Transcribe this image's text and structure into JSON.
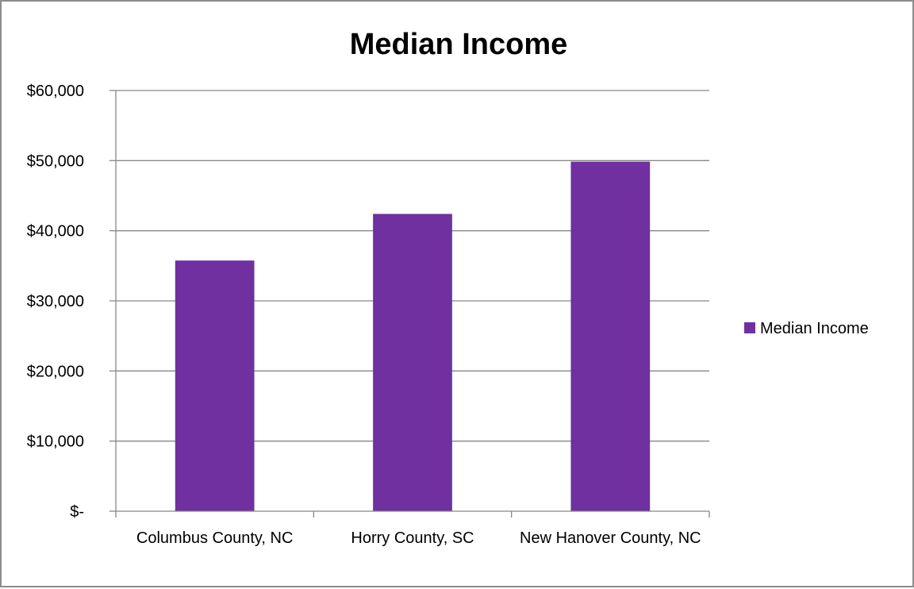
{
  "chart_data": {
    "type": "bar",
    "title": "Median Income",
    "categories": [
      "Columbus County, NC",
      "Horry County, SC",
      "New Hanover County, NC"
    ],
    "series": [
      {
        "name": "Median Income",
        "values": [
          35750,
          42400,
          49850
        ]
      }
    ],
    "ylim": [
      0,
      60000
    ],
    "yticks": [
      0,
      10000,
      20000,
      30000,
      40000,
      50000,
      60000
    ],
    "ytick_labels": [
      "$-",
      "$10,000",
      "$20,000",
      "$30,000",
      "$40,000",
      "$50,000",
      "$60,000"
    ],
    "grid": true,
    "legend_position": "right",
    "bar_color": "#7030a0",
    "gridline_color": "#878787"
  }
}
